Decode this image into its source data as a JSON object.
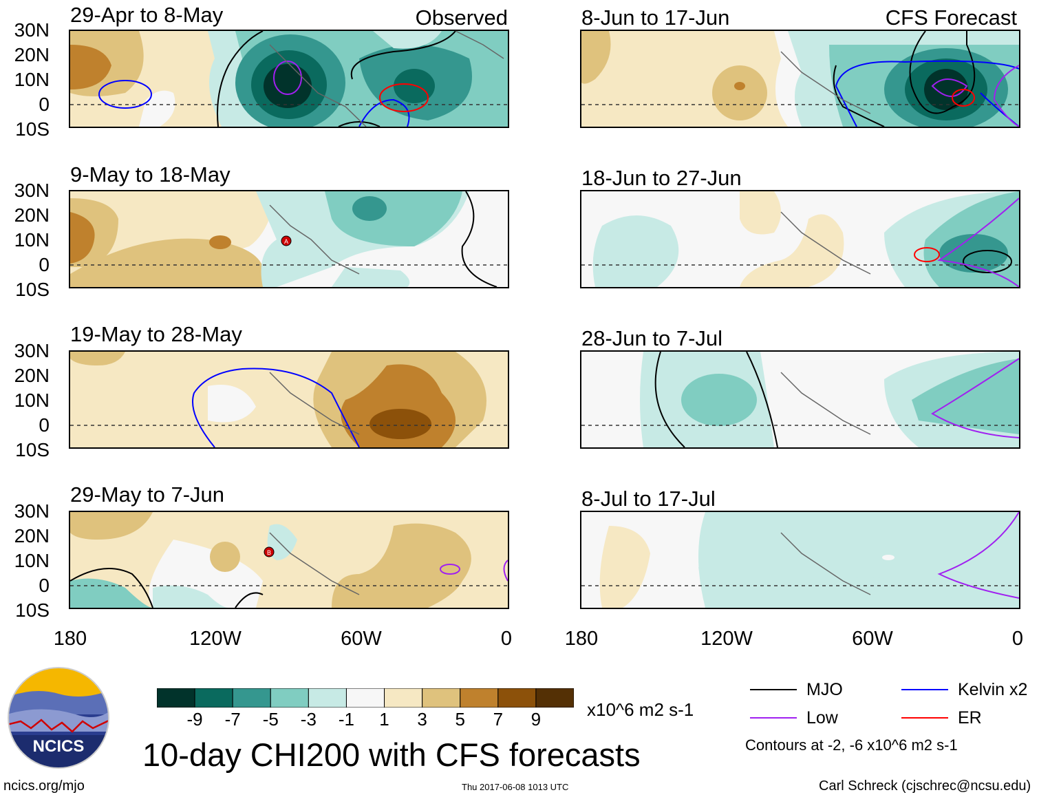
{
  "column_labels": {
    "observed": "Observed",
    "forecast": "CFS Forecast"
  },
  "panels_left": [
    {
      "period": "29-Apr to 8-May"
    },
    {
      "period": "9-May to 18-May"
    },
    {
      "period": "19-May to 28-May"
    },
    {
      "period": "29-May to 7-Jun"
    }
  ],
  "panels_right": [
    {
      "period": "8-Jun to 17-Jun"
    },
    {
      "period": "18-Jun to 27-Jun"
    },
    {
      "period": "28-Jun to 7-Jul"
    },
    {
      "period": "8-Jul to 17-Jul"
    }
  ],
  "lat_ticks": [
    "30N",
    "20N",
    "10N",
    "0",
    "10S"
  ],
  "lon_ticks": [
    "180",
    "120W",
    "60W",
    "0"
  ],
  "colorbar": {
    "colors": [
      "#01332b",
      "#0a6a5e",
      "#35978f",
      "#80cdc1",
      "#c7eae5",
      "#f7f7f7",
      "#f6e8c3",
      "#dfc27d",
      "#bf812d",
      "#8c510a",
      "#543005"
    ],
    "tick_labels": [
      "-9",
      "-7",
      "-5",
      "-3",
      "-1",
      "1",
      "3",
      "5",
      "7",
      "9"
    ],
    "units": "x10^6 m2 s-1"
  },
  "title": "10-day CHI200 with CFS forecasts",
  "logo_text": "NCICS",
  "url": "ncics.org/mjo",
  "timestamp": "Thu 2017-06-08 1013 UTC",
  "author": "Carl Schreck (cjschrec@ncsu.edu)",
  "legend": {
    "items": [
      {
        "label": "MJO",
        "color": "#000000"
      },
      {
        "label": "Kelvin x2",
        "color": "#0000ff"
      },
      {
        "label": "Low",
        "color": "#a020f0"
      },
      {
        "label": "ER",
        "color": "#ff0000"
      }
    ],
    "note": "Contours at -2, -6 x10^6 m2 s-1"
  },
  "storm_markers": [
    "A",
    "B"
  ]
}
